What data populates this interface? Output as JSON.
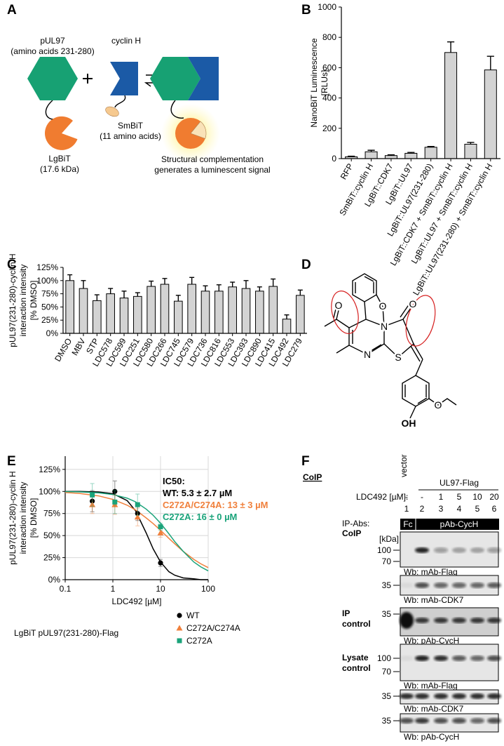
{
  "chart_data": [
    {
      "panel": "B",
      "type": "bar",
      "ylabel": [
        "NanoBiT Luminescence",
        "[RLUs]"
      ],
      "categories": [
        "RFP",
        "SmBiT::cyclin H",
        "LgBiT::CDK7",
        "LgBiT::UL97",
        "LgBiT::UL97(231-280)",
        "LgBiT::CDK7 + SmBiT::cyclin H",
        "LgBiT::UL97 + SmBiT::cyclin H",
        "LgBiT::UL97(231-280) + SmBiT::cyclin H"
      ],
      "values": [
        12,
        45,
        20,
        35,
        75,
        700,
        95,
        585
      ],
      "errors": [
        4,
        10,
        5,
        6,
        5,
        70,
        12,
        90
      ],
      "color": "#d3d3d3",
      "ylim": [
        0,
        1000
      ],
      "yticks": [
        0,
        200,
        400,
        600,
        800,
        1000
      ]
    },
    {
      "panel": "C",
      "type": "bar",
      "ylabel": [
        "pUL97(231-280)-cyclin H",
        "interaction intensity",
        "[% DMSO]"
      ],
      "categories": [
        "DMSO",
        "MBV",
        "STP",
        "LDC578",
        "LDC599",
        "LDC251",
        "LDC580",
        "LDC266",
        "LDC745",
        "LDC579",
        "LDC736",
        "LDC816",
        "LDC553",
        "LDC393",
        "LDC890",
        "LDC415",
        "LDC492",
        "LDC279"
      ],
      "values": [
        100,
        85,
        62,
        75,
        67,
        70,
        89,
        93,
        61,
        93,
        80,
        80,
        88,
        85,
        80,
        89,
        27,
        72
      ],
      "errors": [
        11,
        15,
        11,
        10,
        13,
        7,
        10,
        11,
        11,
        13,
        10,
        12,
        9,
        15,
        8,
        14,
        8,
        10
      ],
      "color": "#d3d3d3",
      "ylim": [
        0,
        125
      ],
      "yticks": [
        {
          "value": 0,
          "label": "0%"
        },
        {
          "value": 25,
          "label": "25%"
        },
        {
          "value": 50,
          "label": "50%"
        },
        {
          "value": 75,
          "label": "75%"
        },
        {
          "value": 100,
          "label": "100%"
        },
        {
          "value": 125,
          "label": "125%"
        }
      ]
    },
    {
      "panel": "E",
      "type": "scatter",
      "xscale": "log",
      "grid": true,
      "ylabel": [
        "pUL97(231-280)-cyclin H",
        "interaction intensity",
        "[% DMSO]"
      ],
      "xlabel": "LDC492 [µM]",
      "x": [
        0.37,
        1.1,
        3.3,
        10
      ],
      "xlim": [
        0.1,
        100
      ],
      "xticks": [
        0.1,
        1,
        10,
        100
      ],
      "ylim": [
        0,
        140
      ],
      "yticks": [
        {
          "value": 0,
          "label": "0%"
        },
        {
          "value": 25,
          "label": "25%"
        },
        {
          "value": 50,
          "label": "50%"
        },
        {
          "value": 75,
          "label": "75%"
        },
        {
          "value": 100,
          "label": "100%"
        },
        {
          "value": 125,
          "label": "125%"
        }
      ],
      "fit_x": [
        0.1,
        0.2,
        0.5,
        1,
        2,
        3,
        5,
        7,
        10,
        15,
        20,
        30,
        50,
        70,
        100
      ],
      "series": [
        {
          "name": "WT",
          "color": "#000000",
          "marker": "circle",
          "values": [
            89,
            100,
            75,
            19
          ],
          "errors": [
            12,
            12,
            8,
            4
          ],
          "fit_values": [
            100,
            100,
            99.4,
            97.5,
            89.6,
            78,
            53,
            35,
            20,
            9,
            5,
            2,
            1,
            0,
            0
          ]
        },
        {
          "name": "C272A/C274A",
          "color": "#f0803c",
          "marker": "triangle",
          "values": [
            85,
            85,
            71,
            53
          ],
          "errors": [
            10,
            11,
            10,
            5
          ],
          "fit_values": [
            98.8,
            97.7,
            95,
            91,
            84.4,
            79,
            70,
            63.6,
            56,
            46.8,
            40.5,
            32,
            23,
            18,
            13.7
          ]
        },
        {
          "name": "C272A",
          "color": "#1aa37a",
          "marker": "square",
          "values": [
            96,
            88,
            85,
            60
          ],
          "errors": [
            13,
            13,
            12,
            4
          ],
          "fit_values": [
            99.8,
            99.5,
            98.4,
            96.5,
            92.4,
            88.2,
            80,
            73,
            64,
            52,
            43,
            32,
            20,
            14.5,
            10
          ]
        }
      ],
      "legend_title": "LgBiT pUL97(231-280)-Flag",
      "annotation": [
        {
          "text": "IC50:",
          "color": "#000000"
        },
        {
          "text": "WT: 5.3 ± 2.7 µM",
          "color": "#000000"
        },
        {
          "text": "C272A/C274A: 13 ± 3 µM",
          "color": "#f0803c"
        },
        {
          "text": "C272A: 16 ± 0 µM",
          "color": "#1aa37a"
        }
      ]
    }
  ],
  "panel_a": {
    "letter": "A",
    "pul97": [
      "pUL97",
      "(amino acids 231-280)"
    ],
    "cyclin_h": "cyclin H",
    "lgbit": [
      "LgBiT",
      "(17.6 kDa)"
    ],
    "smbit": [
      "SmBiT",
      "(11 amino acids)"
    ],
    "caption": [
      "Structural complementation",
      "generates a luminescent signal"
    ]
  },
  "panel_d": {
    "letter": "D",
    "atoms": [
      "O",
      "O",
      "N",
      "N",
      "S",
      "O",
      "O",
      "OH"
    ]
  },
  "panel_f": {
    "letter": "F",
    "title": "CoIP",
    "vector": "vector",
    "ul97": "UL97-Flag",
    "ldc_label": "LDC492 [µM]:",
    "doses": [
      "-",
      "-",
      "1",
      "5",
      "10",
      "20"
    ],
    "lanes": [
      "1",
      "2",
      "3",
      "4",
      "5",
      "6"
    ],
    "ip_abs": "IP-Abs:",
    "fc": "Fc",
    "pab": "pAb-CycH",
    "kda": "[kDa]",
    "sections": [
      [
        "CoIP"
      ],
      [
        "IP",
        "control"
      ],
      [
        "Lysate",
        "control"
      ]
    ],
    "blots": [
      {
        "markers": [
          "100",
          "70"
        ],
        "wb": "Wb: mAb-Flag"
      },
      {
        "markers": [
          "35"
        ],
        "wb": "Wb: mAb-CDK7"
      },
      {
        "markers": [
          "35"
        ],
        "wb": "Wb: pAb-CycH"
      },
      {
        "markers": [
          "100",
          "70"
        ],
        "wb": "Wb: mAb-Flag"
      },
      {
        "markers": [
          "35"
        ],
        "wb": "Wb: mAb-CDK7"
      },
      {
        "markers": [
          "35"
        ],
        "wb": "Wb: pAb-CycH"
      }
    ]
  }
}
